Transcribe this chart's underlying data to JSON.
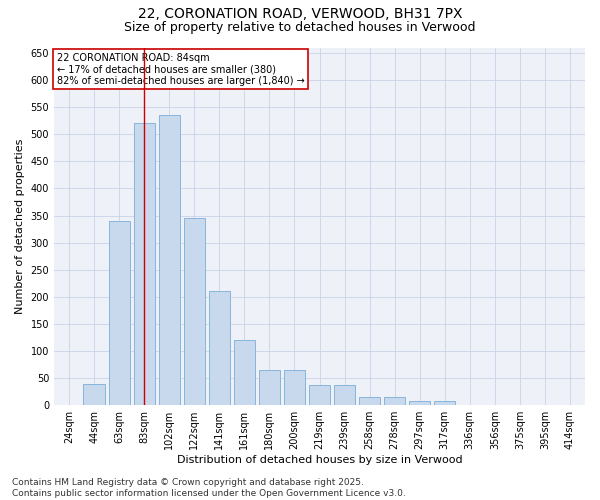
{
  "title": "22, CORONATION ROAD, VERWOOD, BH31 7PX",
  "subtitle": "Size of property relative to detached houses in Verwood",
  "xlabel": "Distribution of detached houses by size in Verwood",
  "ylabel": "Number of detached properties",
  "categories": [
    "24sqm",
    "44sqm",
    "63sqm",
    "83sqm",
    "102sqm",
    "122sqm",
    "141sqm",
    "161sqm",
    "180sqm",
    "200sqm",
    "219sqm",
    "239sqm",
    "258sqm",
    "278sqm",
    "297sqm",
    "317sqm",
    "336sqm",
    "356sqm",
    "375sqm",
    "395sqm",
    "414sqm"
  ],
  "values": [
    0,
    40,
    340,
    520,
    535,
    345,
    210,
    120,
    65,
    65,
    37,
    37,
    15,
    15,
    8,
    8,
    0,
    0,
    0,
    0,
    0
  ],
  "bar_color": "#c8d9ee",
  "bar_edge_color": "#7aaed6",
  "grid_color": "#c8d4e8",
  "background_color": "#eef2f8",
  "vline_x": 3,
  "vline_color": "#cc0000",
  "annotation_text": "22 CORONATION ROAD: 84sqm\n← 17% of detached houses are smaller (380)\n82% of semi-detached houses are larger (1,840) →",
  "annotation_box_color": "#ffffff",
  "annotation_edge_color": "#cc0000",
  "ylim": [
    0,
    660
  ],
  "yticks": [
    0,
    50,
    100,
    150,
    200,
    250,
    300,
    350,
    400,
    450,
    500,
    550,
    600,
    650
  ],
  "footer_text": "Contains HM Land Registry data © Crown copyright and database right 2025.\nContains public sector information licensed under the Open Government Licence v3.0.",
  "title_fontsize": 10,
  "subtitle_fontsize": 9,
  "axis_label_fontsize": 8,
  "tick_fontsize": 7,
  "annotation_fontsize": 7,
  "footer_fontsize": 6.5
}
